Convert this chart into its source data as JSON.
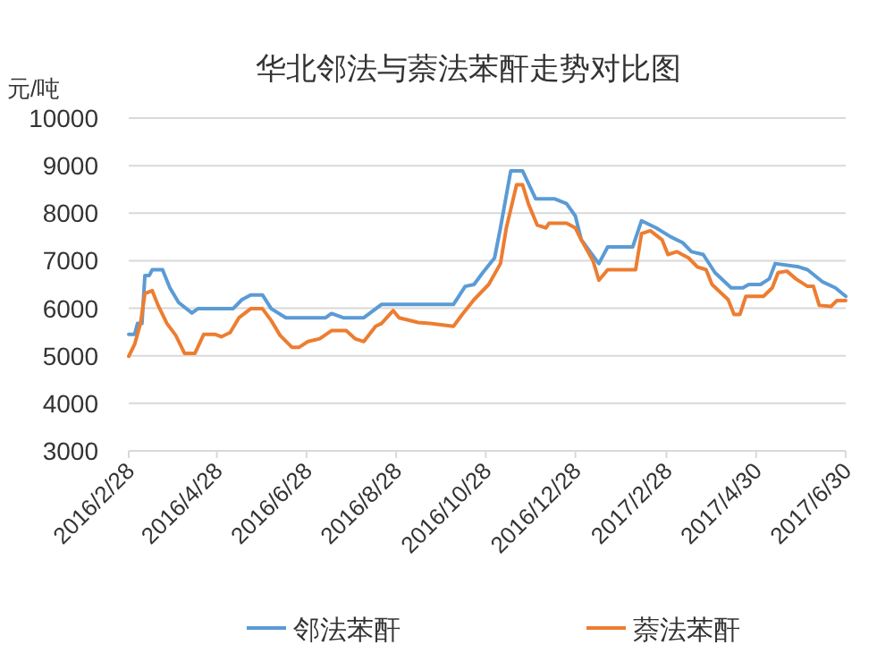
{
  "chart_data": {
    "type": "line",
    "title": "华北邻法与萘法苯酐走势对比图",
    "ylabel": "元/吨",
    "xlim": [
      "2016-02-28",
      "2017-06-30"
    ],
    "xticks": [
      {
        "value": "2016-02-28",
        "label": "2016/2/28"
      },
      {
        "value": "2016-04-28",
        "label": "2016/4/28"
      },
      {
        "value": "2016-06-28",
        "label": "2016/6/28"
      },
      {
        "value": "2016-08-28",
        "label": "2016/8/28"
      },
      {
        "value": "2016-10-28",
        "label": "2016/10/28"
      },
      {
        "value": "2016-12-28",
        "label": "2016/12/28"
      },
      {
        "value": "2017-02-28",
        "label": "2017/2/28"
      },
      {
        "value": "2017-04-30",
        "label": "2017/4/30"
      },
      {
        "value": "2017-06-30",
        "label": "2017/6/30"
      }
    ],
    "ylim": [
      3000,
      10000
    ],
    "yticks": [
      3000,
      4000,
      5000,
      6000,
      7000,
      8000,
      9000,
      10000
    ],
    "grid": "y",
    "legend": "bottom",
    "marker": "none",
    "line_style": "solid",
    "series": [
      {
        "name": "邻法苯酐",
        "color": "#5b9bd5",
        "x": [
          "2016-02-28",
          "2016-03-03",
          "2016-03-05",
          "2016-03-08",
          "2016-03-10",
          "2016-03-13",
          "2016-03-15",
          "2016-03-22",
          "2016-03-27",
          "2016-04-02",
          "2016-04-11",
          "2016-04-15",
          "2016-05-09",
          "2016-05-15",
          "2016-05-21",
          "2016-05-29",
          "2016-06-04",
          "2016-06-14",
          "2016-07-11",
          "2016-07-15",
          "2016-07-23",
          "2016-08-06",
          "2016-08-18",
          "2016-10-06",
          "2016-10-14",
          "2016-10-20",
          "2016-10-26",
          "2016-11-03",
          "2016-11-07",
          "2016-11-14",
          "2016-11-22",
          "2016-11-26",
          "2016-12-01",
          "2016-12-14",
          "2016-12-22",
          "2016-12-28",
          "2017-01-01",
          "2017-01-07",
          "2017-01-13",
          "2017-01-19",
          "2017-02-05",
          "2017-02-11",
          "2017-02-21",
          "2017-03-03",
          "2017-03-11",
          "2017-03-17",
          "2017-03-25",
          "2017-04-02",
          "2017-04-13",
          "2017-04-21",
          "2017-04-25",
          "2017-05-03",
          "2017-05-09",
          "2017-05-13",
          "2017-05-29",
          "2017-06-04",
          "2017-06-14",
          "2017-06-23",
          "2017-06-30"
        ],
        "values": [
          5450,
          5450,
          5680,
          5680,
          6690,
          6690,
          6810,
          6810,
          6430,
          6120,
          5900,
          5990,
          5990,
          6180,
          6280,
          6280,
          5990,
          5800,
          5800,
          5890,
          5800,
          5800,
          6080,
          6080,
          6460,
          6500,
          6750,
          7060,
          7690,
          8890,
          8890,
          8630,
          8300,
          8300,
          8200,
          7940,
          7440,
          7190,
          6940,
          7290,
          7290,
          7840,
          7690,
          7500,
          7380,
          7190,
          7130,
          6750,
          6430,
          6430,
          6500,
          6500,
          6620,
          6940,
          6870,
          6810,
          6560,
          6430,
          6250
        ]
      },
      {
        "name": "萘法苯酐",
        "color": "#ed7d31",
        "x": [
          "2016-02-28",
          "2016-03-03",
          "2016-03-07",
          "2016-03-10",
          "2016-03-15",
          "2016-03-19",
          "2016-03-25",
          "2016-03-31",
          "2016-04-06",
          "2016-04-13",
          "2016-04-19",
          "2016-04-27",
          "2016-05-01",
          "2016-05-07",
          "2016-05-13",
          "2016-05-21",
          "2016-05-29",
          "2016-06-04",
          "2016-06-10",
          "2016-06-18",
          "2016-06-23",
          "2016-06-29",
          "2016-07-07",
          "2016-07-15",
          "2016-07-25",
          "2016-07-31",
          "2016-08-06",
          "2016-08-14",
          "2016-08-18",
          "2016-08-26",
          "2016-08-30",
          "2016-09-12",
          "2016-09-20",
          "2016-10-06",
          "2016-10-12",
          "2016-10-20",
          "2016-10-30",
          "2016-11-07",
          "2016-11-11",
          "2016-11-18",
          "2016-11-22",
          "2016-11-26",
          "2016-12-02",
          "2016-12-08",
          "2016-12-10",
          "2016-12-22",
          "2016-12-28",
          "2017-01-01",
          "2017-01-09",
          "2017-01-13",
          "2017-01-19",
          "2017-02-07",
          "2017-02-11",
          "2017-02-17",
          "2017-02-25",
          "2017-03-01",
          "2017-03-07",
          "2017-03-15",
          "2017-03-21",
          "2017-03-27",
          "2017-03-31",
          "2017-04-11",
          "2017-04-15",
          "2017-04-19",
          "2017-04-23",
          "2017-05-05",
          "2017-05-11",
          "2017-05-15",
          "2017-05-21",
          "2017-05-27",
          "2017-06-04",
          "2017-06-08",
          "2017-06-12",
          "2017-06-20",
          "2017-06-24",
          "2017-06-30"
        ],
        "values": [
          4990,
          5240,
          5680,
          6310,
          6370,
          6060,
          5680,
          5430,
          5050,
          5050,
          5450,
          5450,
          5400,
          5490,
          5800,
          5990,
          5990,
          5740,
          5430,
          5180,
          5180,
          5300,
          5360,
          5530,
          5530,
          5360,
          5300,
          5620,
          5680,
          5950,
          5800,
          5700,
          5680,
          5620,
          5870,
          6180,
          6500,
          6940,
          7690,
          8600,
          8600,
          8200,
          7750,
          7690,
          7790,
          7790,
          7690,
          7440,
          7000,
          6590,
          6810,
          6810,
          7570,
          7630,
          7440,
          7130,
          7190,
          7060,
          6870,
          6810,
          6500,
          6180,
          5870,
          5870,
          6250,
          6250,
          6430,
          6750,
          6780,
          6620,
          6460,
          6460,
          6060,
          6040,
          6160,
          6160
        ]
      }
    ]
  }
}
